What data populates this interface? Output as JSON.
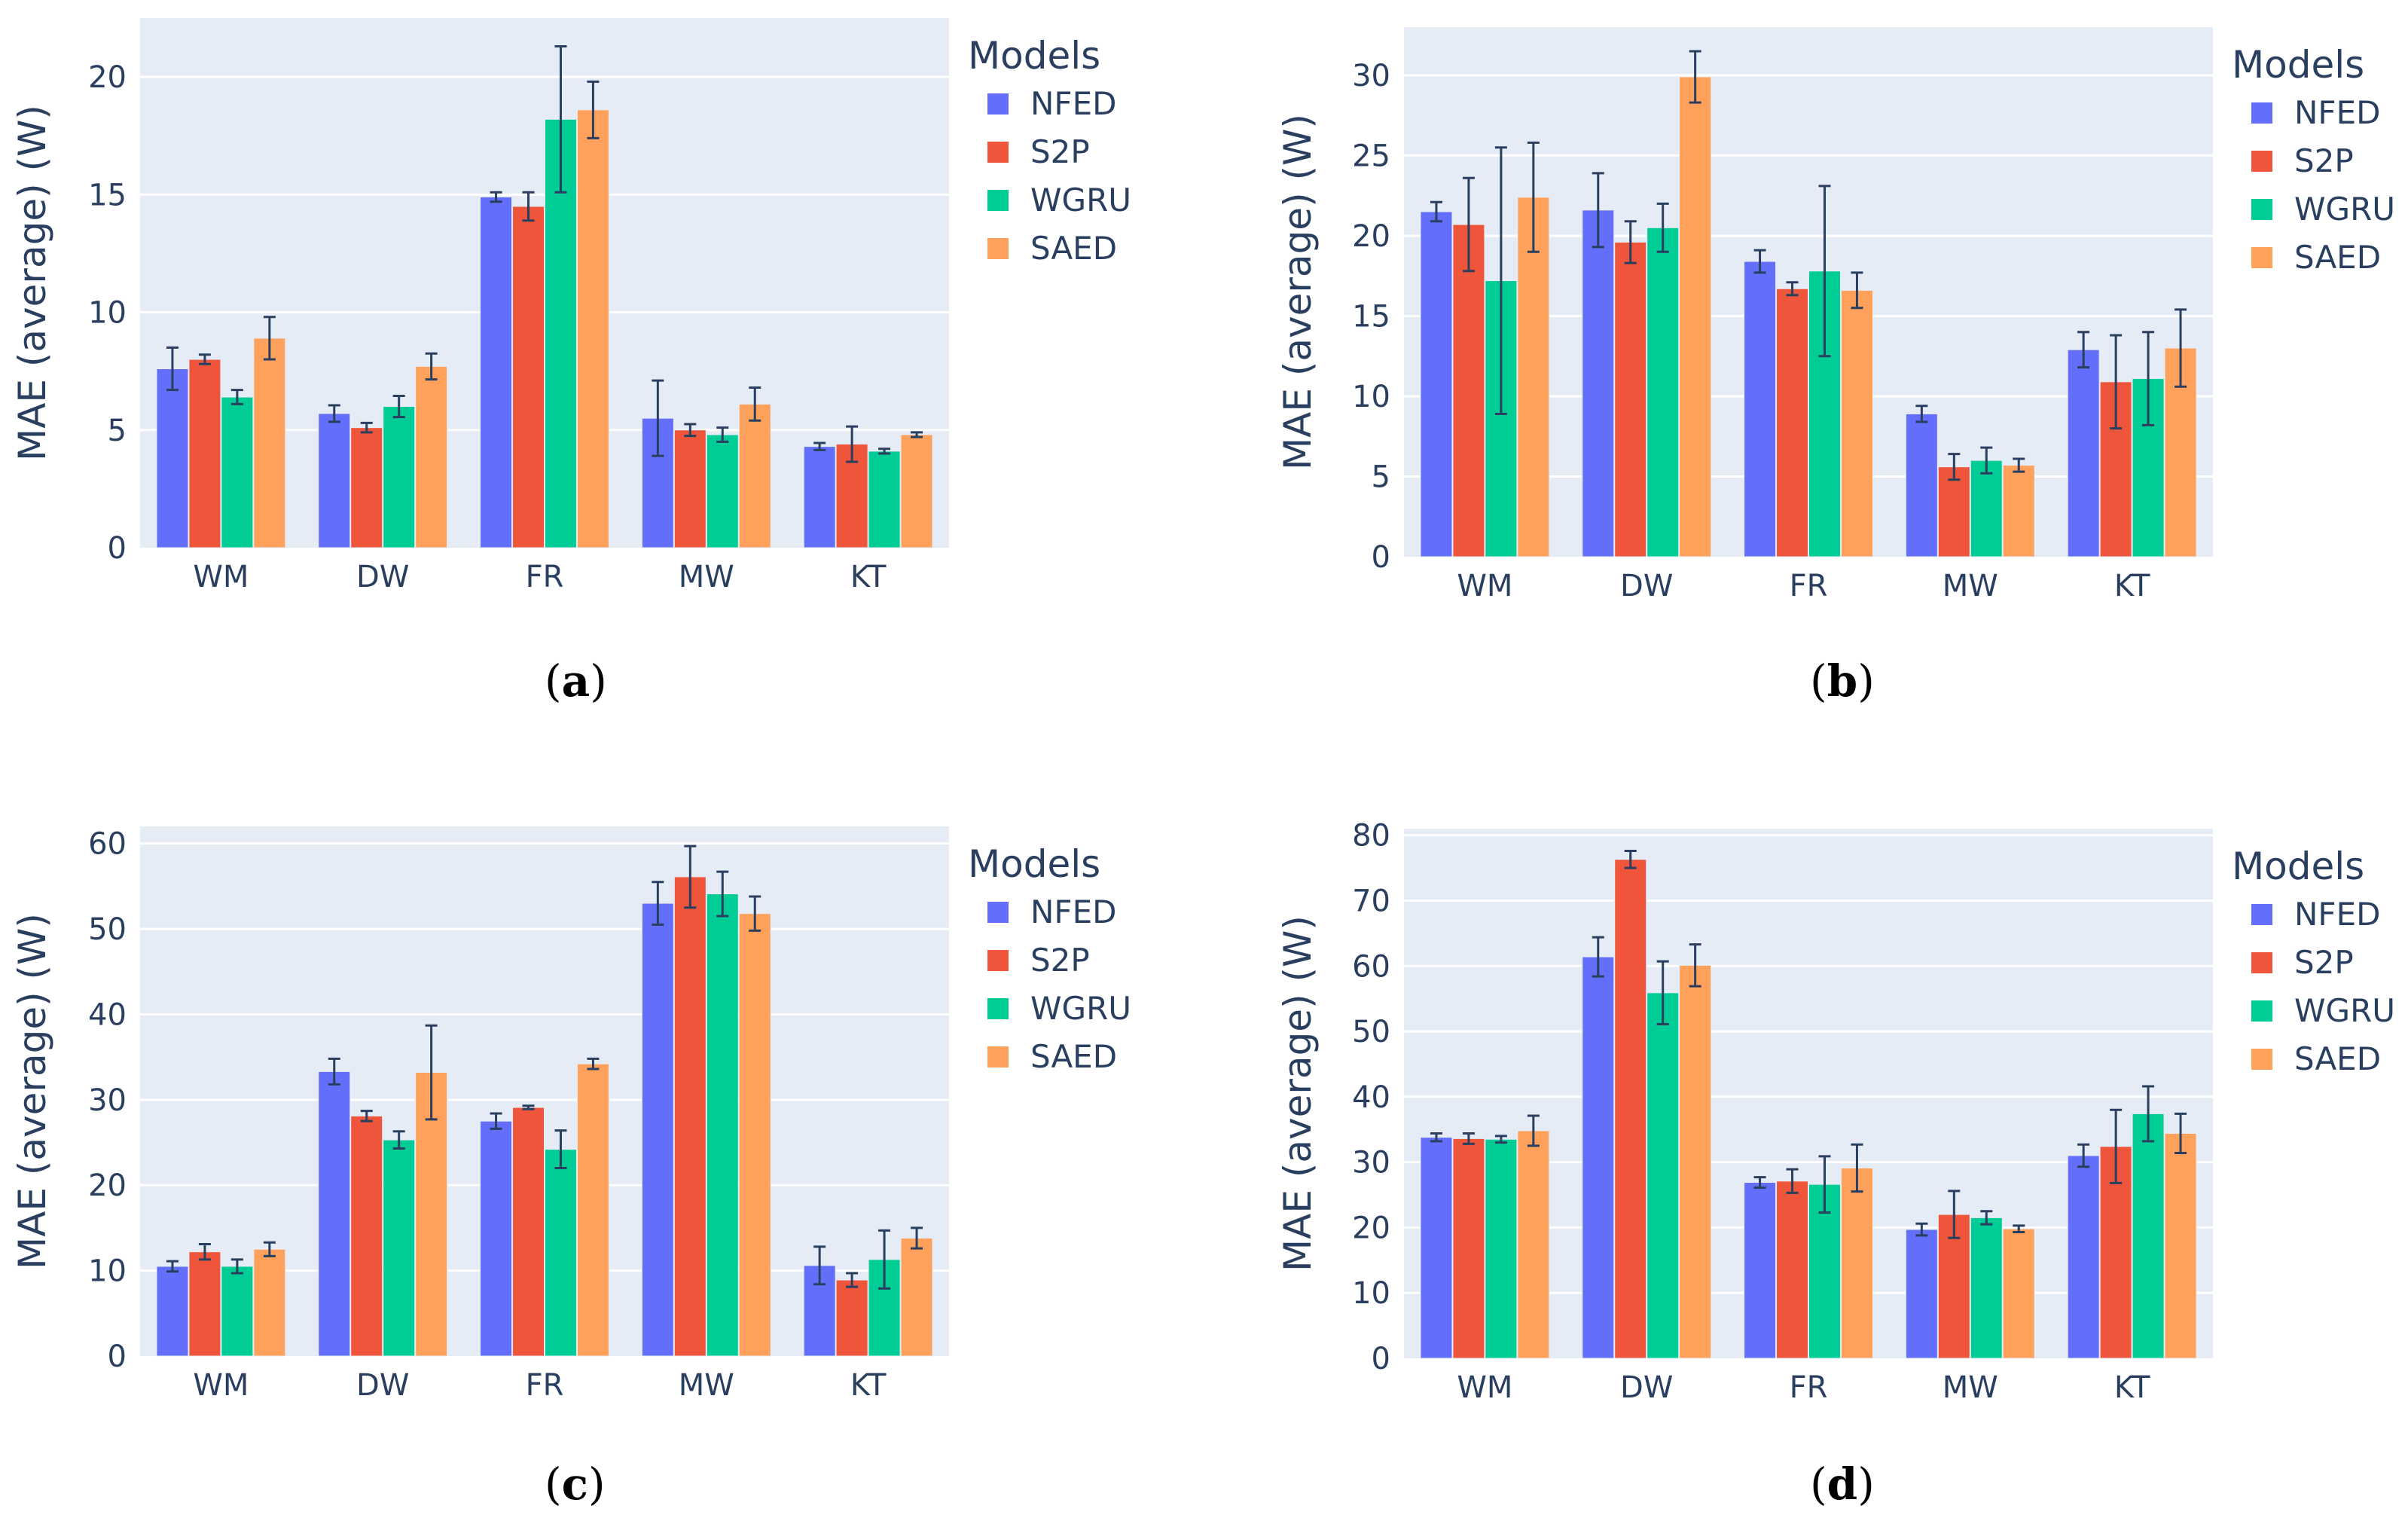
{
  "colors": {
    "NFED": "#636efa",
    "S2P": "#ef553b",
    "WGRU": "#00cc96",
    "SAED": "#ffa15a",
    "plot_bg": "#e5ecf6",
    "error_bar": "#2a3f5f"
  },
  "chart_data": [
    {
      "type": "bar",
      "panel": "a",
      "panel_letter": "a",
      "categories": [
        "WM",
        "DW",
        "FR",
        "MW",
        "KT"
      ],
      "ylabel": "MAE (average) (W)",
      "ylim": [
        0,
        22.5
      ],
      "yticks": [
        0,
        5,
        10,
        15,
        20
      ],
      "legend_title": "Models",
      "legend_position": "right",
      "grid": true,
      "series": [
        {
          "name": "NFED",
          "values": [
            7.6,
            5.7,
            14.9,
            5.5,
            4.3
          ],
          "errors": [
            0.9,
            0.35,
            0.2,
            1.6,
            0.15
          ]
        },
        {
          "name": "S2P",
          "values": [
            8.0,
            5.1,
            14.5,
            5.0,
            4.4
          ],
          "errors": [
            0.2,
            0.2,
            0.6,
            0.25,
            0.75
          ]
        },
        {
          "name": "WGRU",
          "values": [
            6.4,
            6.0,
            18.2,
            4.8,
            4.1
          ],
          "errors": [
            0.3,
            0.45,
            3.1,
            0.3,
            0.1
          ]
        },
        {
          "name": "SAED",
          "values": [
            8.9,
            7.7,
            18.6,
            6.1,
            4.8
          ],
          "errors": [
            0.9,
            0.55,
            1.2,
            0.7,
            0.1
          ]
        }
      ]
    },
    {
      "type": "bar",
      "panel": "b",
      "panel_letter": "b",
      "categories": [
        "WM",
        "DW",
        "FR",
        "MW",
        "KT"
      ],
      "ylabel": "MAE (average) (W)",
      "ylim": [
        0,
        33
      ],
      "yticks": [
        0,
        5,
        10,
        15,
        20,
        25,
        30
      ],
      "legend_title": "Models",
      "legend_position": "right",
      "grid": true,
      "series": [
        {
          "name": "NFED",
          "values": [
            21.5,
            21.6,
            18.4,
            8.9,
            12.9
          ],
          "errors": [
            0.6,
            2.3,
            0.7,
            0.5,
            1.1
          ]
        },
        {
          "name": "S2P",
          "values": [
            20.7,
            19.6,
            16.7,
            5.6,
            10.9
          ],
          "errors": [
            2.9,
            1.3,
            0.4,
            0.8,
            2.9
          ]
        },
        {
          "name": "WGRU",
          "values": [
            17.2,
            20.5,
            17.8,
            6.0,
            11.1
          ],
          "errors": [
            8.3,
            1.5,
            5.3,
            0.8,
            2.9
          ]
        },
        {
          "name": "SAED",
          "values": [
            22.4,
            29.9,
            16.6,
            5.7,
            13.0
          ],
          "errors": [
            3.4,
            1.6,
            1.1,
            0.4,
            2.4
          ]
        }
      ]
    },
    {
      "type": "bar",
      "panel": "c",
      "panel_letter": "c",
      "categories": [
        "WM",
        "DW",
        "FR",
        "MW",
        "KT"
      ],
      "ylabel": "MAE (average) (W)",
      "ylim": [
        0,
        62
      ],
      "yticks": [
        0,
        10,
        20,
        30,
        40,
        50,
        60
      ],
      "legend_title": "Models",
      "legend_position": "right",
      "grid": true,
      "series": [
        {
          "name": "NFED",
          "values": [
            10.5,
            33.3,
            27.5,
            53.0,
            10.6
          ],
          "errors": [
            0.6,
            1.5,
            0.9,
            2.5,
            2.2
          ]
        },
        {
          "name": "S2P",
          "values": [
            12.2,
            28.1,
            29.1,
            56.1,
            8.9
          ],
          "errors": [
            0.9,
            0.6,
            0.2,
            3.6,
            0.8
          ]
        },
        {
          "name": "WGRU",
          "values": [
            10.5,
            25.3,
            24.2,
            54.1,
            11.3
          ],
          "errors": [
            0.8,
            1.0,
            2.2,
            2.6,
            3.4
          ]
        },
        {
          "name": "SAED",
          "values": [
            12.5,
            33.2,
            34.2,
            51.8,
            13.8
          ],
          "errors": [
            0.8,
            5.5,
            0.6,
            2.0,
            1.2
          ]
        }
      ]
    },
    {
      "type": "bar",
      "panel": "d",
      "panel_letter": "d",
      "categories": [
        "WM",
        "DW",
        "FR",
        "MW",
        "KT"
      ],
      "ylabel": "MAE (average) (W)",
      "ylim": [
        0,
        81
      ],
      "yticks": [
        0,
        10,
        20,
        30,
        40,
        50,
        60,
        70,
        80
      ],
      "legend_title": "Models",
      "legend_position": "right",
      "grid": true,
      "series": [
        {
          "name": "NFED",
          "values": [
            33.8,
            61.4,
            26.9,
            19.7,
            31.0
          ],
          "errors": [
            0.6,
            3.0,
            0.8,
            0.9,
            1.7
          ]
        },
        {
          "name": "S2P",
          "values": [
            33.6,
            76.3,
            27.1,
            22.0,
            32.4
          ],
          "errors": [
            0.8,
            1.3,
            1.8,
            3.6,
            5.6
          ]
        },
        {
          "name": "WGRU",
          "values": [
            33.5,
            55.9,
            26.6,
            21.5,
            37.4
          ],
          "errors": [
            0.5,
            4.8,
            4.3,
            1.0,
            4.2
          ]
        },
        {
          "name": "SAED",
          "values": [
            34.8,
            60.1,
            29.1,
            19.8,
            34.4
          ],
          "errors": [
            2.3,
            3.2,
            3.6,
            0.5,
            3.0
          ]
        }
      ]
    }
  ]
}
